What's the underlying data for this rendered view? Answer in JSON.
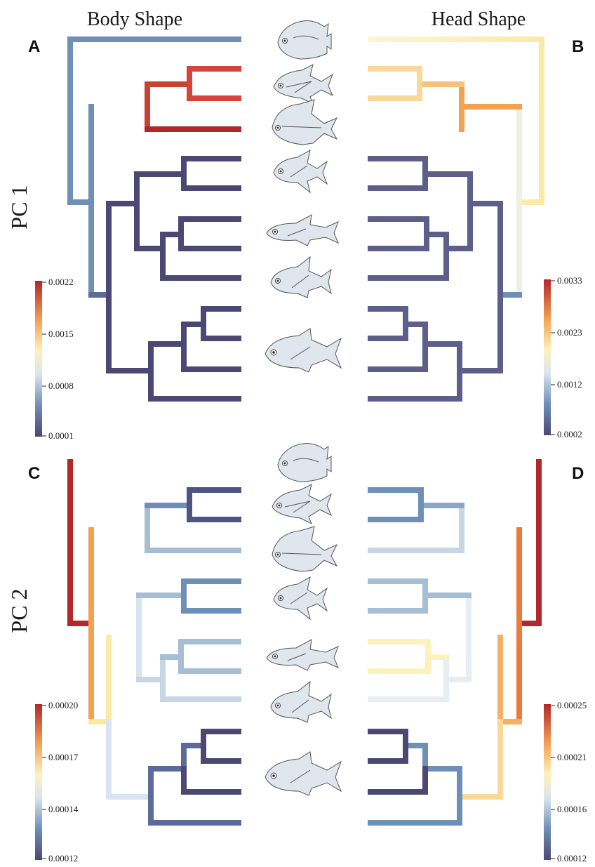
{
  "titles": {
    "left": "Body Shape",
    "right": "Head Shape"
  },
  "panel_letters": {
    "a": "A",
    "b": "B",
    "c": "C",
    "d": "D"
  },
  "row_labels": {
    "pc1": "PC 1",
    "pc2": "PC 2"
  },
  "colors": {
    "low": "#4d4873",
    "mid_low": "#6f8fb7",
    "mid": "#e6eef3",
    "mid_high": "#fde9a6",
    "high_mid": "#f2a052",
    "high": "#b3272b"
  },
  "legends": {
    "A": {
      "ticks": [
        "0.0022",
        "0.0015",
        "0.0008",
        "0.0001"
      ]
    },
    "B": {
      "ticks": [
        "0.0033",
        "0.0023",
        "0.0012",
        "0.0002"
      ]
    },
    "C": {
      "ticks": [
        "0.00020",
        "0.00017",
        "0.00014",
        "0.00012"
      ]
    },
    "D": {
      "ticks": [
        "0.00025",
        "0.00021",
        "0.00016",
        "0.00012"
      ]
    }
  },
  "icons": [
    "discoid-fish-icon",
    "pompano-fish-icon",
    "lookdown-fish-icon",
    "jack-fish-icon",
    "jack-fish-icon",
    "jack-fish-icon",
    "jack-fish-icon"
  ],
  "panels": {
    "A": {
      "root": "mid_low",
      "upper": "mid_low",
      "clade1": [
        "mid_high",
        "high",
        "high",
        "high",
        "high"
      ],
      "lower": "low"
    }
  }
}
